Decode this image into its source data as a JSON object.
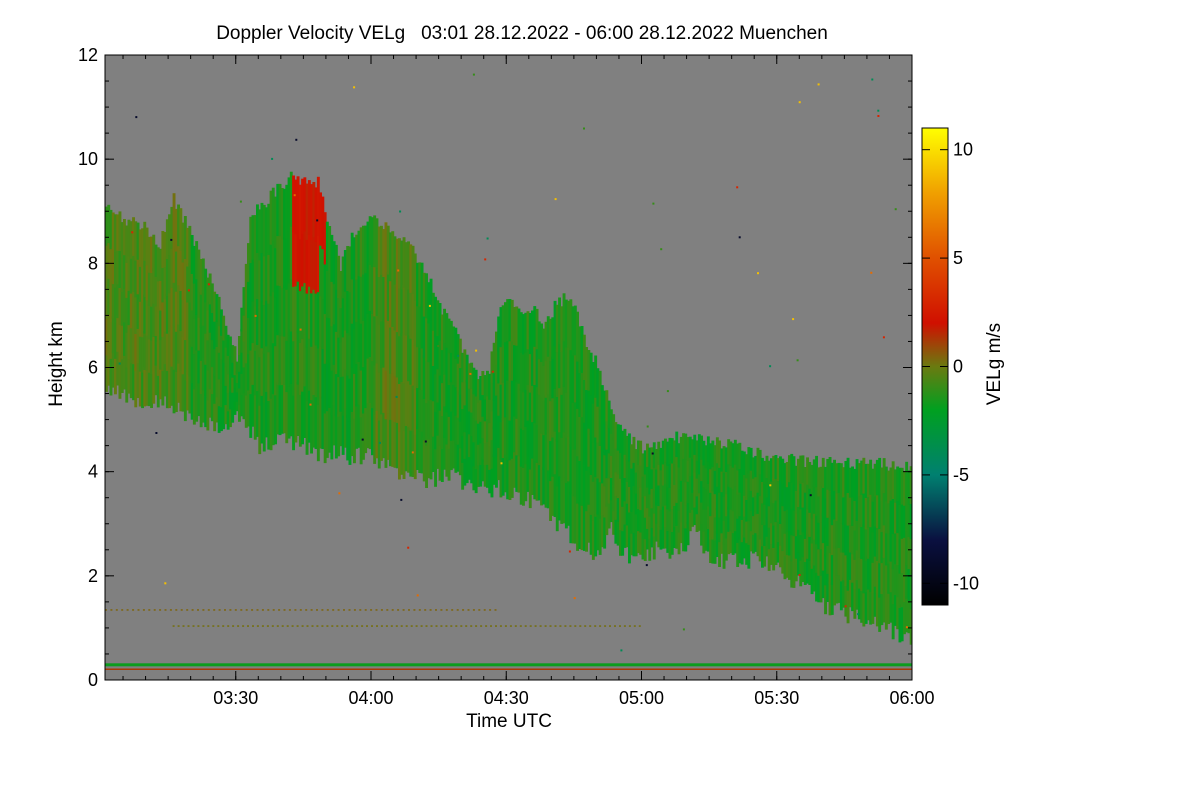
{
  "chart_data": {
    "type": "heatmap",
    "title": "Doppler Velocity VELg   03:01 28.12.2022 - 06:00 28.12.2022 Muenchen",
    "xlabel": "Time UTC",
    "ylabel": "Height km",
    "xlim_minutes_utc": [
      181,
      360
    ],
    "ylim_km": [
      0,
      12
    ],
    "x_ticks": [
      {
        "minute": 210,
        "label": "03:30"
      },
      {
        "minute": 240,
        "label": "04:00"
      },
      {
        "minute": 270,
        "label": "04:30"
      },
      {
        "minute": 300,
        "label": "05:00"
      },
      {
        "minute": 330,
        "label": "05:30"
      },
      {
        "minute": 360,
        "label": "06:00"
      }
    ],
    "y_ticks": [
      {
        "value": 0,
        "label": "0"
      },
      {
        "value": 2,
        "label": "2"
      },
      {
        "value": 4,
        "label": "4"
      },
      {
        "value": 6,
        "label": "6"
      },
      {
        "value": 8,
        "label": "8"
      },
      {
        "value": 10,
        "label": "10"
      },
      {
        "value": 12,
        "label": "12"
      }
    ],
    "colorbar": {
      "label": "VELg m/s",
      "range": [
        -11,
        11
      ],
      "ticks": [
        {
          "value": 10,
          "label": "10"
        },
        {
          "value": 5,
          "label": "5"
        },
        {
          "value": 0,
          "label": "0"
        },
        {
          "value": -5,
          "label": "-5"
        },
        {
          "value": -10,
          "label": "-10"
        }
      ],
      "stops": [
        {
          "value": -11,
          "color": "#000000"
        },
        {
          "value": -8,
          "color": "#0a1040"
        },
        {
          "value": -5,
          "color": "#008070"
        },
        {
          "value": -2,
          "color": "#00a020"
        },
        {
          "value": 0,
          "color": "#6a7a10"
        },
        {
          "value": 2,
          "color": "#d01000"
        },
        {
          "value": 5,
          "color": "#e05000"
        },
        {
          "value": 8,
          "color": "#f0a000"
        },
        {
          "value": 11,
          "color": "#ffff00"
        }
      ]
    },
    "background_color": "#808080",
    "cloud_boundary": {
      "minute": [
        181,
        190,
        193,
        196,
        200,
        205,
        207,
        210,
        213,
        215,
        219,
        222,
        225,
        228,
        231,
        233,
        235,
        239,
        243,
        246,
        249,
        252,
        255,
        258,
        260,
        263,
        266,
        268,
        270,
        273,
        276,
        278,
        281,
        284,
        287,
        290,
        293,
        295,
        297,
        300,
        303,
        305,
        306,
        308,
        310,
        312,
        314,
        317,
        320,
        325,
        330,
        335,
        338,
        341,
        344,
        347,
        350,
        353,
        356,
        360
      ],
      "top_km": [
        9.0,
        8.6,
        8.3,
        9.2,
        8.5,
        7.5,
        7.0,
        6.1,
        8.9,
        9.0,
        9.4,
        9.6,
        9.5,
        9.5,
        8.5,
        7.9,
        8.4,
        8.8,
        8.7,
        8.4,
        8.2,
        7.8,
        7.1,
        6.7,
        6.3,
        5.8,
        5.9,
        7.0,
        7.3,
        6.9,
        7.1,
        6.7,
        7.2,
        7.3,
        6.5,
        6.0,
        5.2,
        4.8,
        4.6,
        4.4,
        4.5,
        4.55,
        4.6,
        4.6,
        4.6,
        4.55,
        4.55,
        4.5,
        4.5,
        4.3,
        4.2,
        4.15,
        4.15,
        4.15,
        4.15,
        4.1,
        4.1,
        4.1,
        4.08,
        4.05
      ],
      "base_km": [
        5.6,
        5.2,
        5.4,
        5.2,
        5.0,
        4.9,
        4.9,
        5.0,
        4.8,
        4.5,
        4.6,
        4.6,
        4.5,
        4.3,
        4.3,
        4.5,
        4.3,
        4.3,
        4.1,
        4.0,
        3.9,
        3.85,
        3.9,
        3.9,
        3.8,
        3.7,
        3.6,
        3.7,
        3.6,
        3.5,
        3.4,
        3.3,
        3.0,
        2.8,
        2.5,
        2.4,
        2.9,
        2.5,
        2.35,
        2.4,
        2.5,
        2.6,
        2.5,
        2.4,
        2.7,
        2.9,
        2.4,
        2.3,
        2.3,
        2.3,
        2.1,
        1.8,
        1.6,
        1.4,
        1.3,
        1.2,
        1.1,
        1.0,
        0.9,
        0.7
      ]
    },
    "annotations": [
      {
        "text": "strong positive (red) core",
        "minute": 226,
        "height_km": 8.5
      },
      {
        "text": "ground clutter layer",
        "height_km": 0.3
      },
      {
        "text": "weak echo line",
        "height_km": 1.35
      }
    ]
  }
}
